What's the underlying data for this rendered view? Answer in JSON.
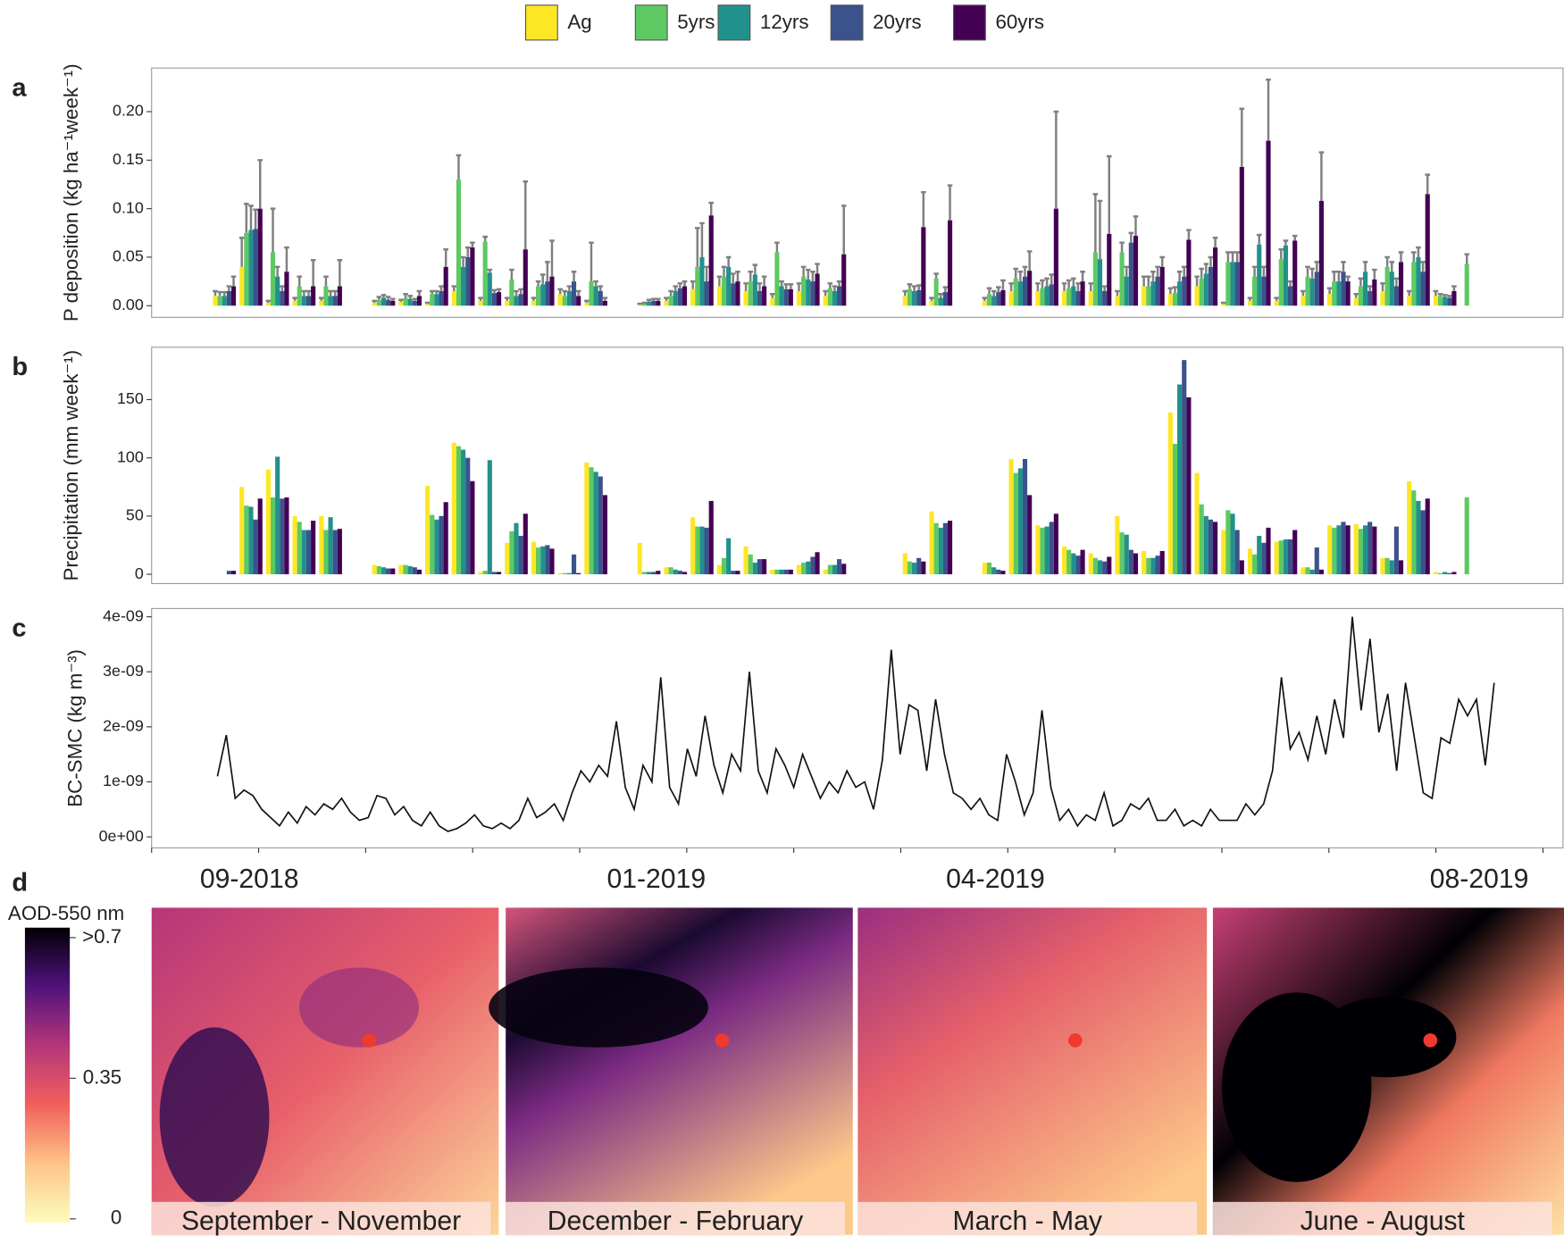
{
  "legend_series": "chart_data.0.series",
  "chart_data": [
    {
      "type": "bar",
      "panel_label": "a",
      "y_label": "P deposition (kg ha⁻¹week⁻¹)",
      "categories": [
        null,
        null,
        null,
        null,
        null,
        null,
        null,
        null,
        null,
        null,
        null,
        null,
        null,
        null,
        null,
        null,
        null,
        null,
        null,
        null,
        null,
        null,
        null,
        null,
        null,
        null,
        null,
        null,
        null,
        null,
        null,
        null,
        null,
        null,
        null,
        null,
        null,
        null,
        null,
        null,
        null,
        null,
        null,
        null,
        null,
        null,
        null,
        null
      ],
      "ylim": [
        -0.012,
        0.245
      ],
      "yticks": [
        {
          "value": 0,
          "label": "0.00"
        },
        {
          "value": 0.05,
          "label": "0.05"
        },
        {
          "value": 0.1,
          "label": "0.10"
        },
        {
          "value": 0.15,
          "label": "0.15"
        },
        {
          "value": 0.2,
          "label": "0.20"
        }
      ],
      "error_color": "#808080",
      "series": [
        {
          "name": "Ag",
          "color": "#fde725",
          "values": [
            0.01,
            0.04,
            0.003,
            0.005,
            0.005,
            null,
            0.003,
            0.004,
            0.002,
            0.015,
            0.005,
            0.005,
            0.005,
            0.012,
            0.003,
            null,
            0.001,
            0.005,
            0.017,
            0.02,
            0.015,
            0.008,
            0.015,
            0.01,
            null,
            null,
            0.01,
            0.005,
            null,
            0.005,
            0.015,
            0.015,
            0.015,
            0.015,
            0.01,
            0.02,
            0.012,
            0.02,
            0.002,
            0.005,
            0.005,
            0.01,
            0.012,
            0.008,
            0.015,
            0.01,
            0.01,
            null
          ],
          "errors": [
            0.005,
            0.03,
            0.002,
            0.003,
            0.003,
            null,
            0.002,
            0.002,
            0.001,
            0.005,
            0.003,
            0.003,
            0.003,
            0.005,
            0.002,
            null,
            0.001,
            0.003,
            0.008,
            0.01,
            0.008,
            0.004,
            0.008,
            0.005,
            null,
            null,
            0.005,
            0.003,
            null,
            0.003,
            0.008,
            0.008,
            0.008,
            0.008,
            0.005,
            0.01,
            0.006,
            0.01,
            0.001,
            0.003,
            0.003,
            0.005,
            0.006,
            0.004,
            0.008,
            0.005,
            0.005,
            null
          ]
        },
        {
          "name": "5yrs",
          "color": "#5ec962",
          "values": [
            0.01,
            0.075,
            0.055,
            0.02,
            0.02,
            null,
            0.006,
            0.008,
            0.012,
            0.13,
            0.066,
            0.027,
            0.02,
            0.01,
            0.025,
            null,
            0.002,
            0.01,
            0.04,
            0.03,
            0.025,
            0.055,
            0.03,
            0.018,
            null,
            null,
            0.017,
            0.028,
            null,
            0.012,
            0.028,
            0.018,
            0.018,
            0.055,
            0.055,
            0.02,
            0.013,
            0.028,
            0.045,
            0.03,
            0.048,
            0.03,
            0.025,
            0.02,
            0.04,
            0.045,
            0.01,
            0.043
          ],
          "errors": [
            0.004,
            0.03,
            0.045,
            0.01,
            0.01,
            null,
            0.003,
            0.004,
            0.003,
            0.025,
            0.005,
            0.01,
            0.005,
            0.005,
            0.04,
            null,
            0.001,
            0.005,
            0.04,
            0.01,
            0.01,
            0.01,
            0.01,
            0.005,
            null,
            null,
            0.005,
            0.005,
            null,
            0.006,
            0.01,
            0.008,
            0.008,
            0.06,
            0.01,
            0.01,
            0.006,
            0.01,
            0.01,
            0.01,
            0.01,
            0.01,
            0.01,
            0.008,
            0.01,
            0.01,
            0.002,
            0.01
          ]
        },
        {
          "name": "12yrs",
          "color": "#21918c",
          "values": [
            0.01,
            0.078,
            0.03,
            0.01,
            0.01,
            null,
            0.008,
            0.007,
            0.012,
            0.04,
            0.034,
            0.01,
            0.022,
            0.015,
            0.02,
            null,
            0.004,
            0.015,
            0.05,
            0.04,
            0.032,
            0.02,
            0.027,
            0.015,
            null,
            null,
            0.015,
            0.008,
            null,
            0.01,
            0.025,
            0.02,
            0.02,
            0.048,
            0.03,
            0.025,
            0.025,
            0.033,
            0.045,
            0.063,
            0.062,
            0.028,
            0.025,
            0.035,
            0.035,
            0.05,
            0.009,
            null
          ],
          "errors": [
            0.004,
            0.025,
            0.01,
            0.005,
            0.005,
            null,
            0.003,
            0.003,
            0.003,
            0.01,
            0.003,
            0.005,
            0.01,
            0.005,
            0.005,
            null,
            0.002,
            0.005,
            0.035,
            0.01,
            0.01,
            0.005,
            0.01,
            0.005,
            null,
            null,
            0.005,
            0.004,
            null,
            0.005,
            0.01,
            0.008,
            0.008,
            0.06,
            0.01,
            0.01,
            0.01,
            0.01,
            0.01,
            0.01,
            0.005,
            0.01,
            0.01,
            0.01,
            0.01,
            0.01,
            0.002,
            null
          ]
        },
        {
          "name": "20yrs",
          "color": "#3b528b",
          "values": [
            0.015,
            0.079,
            0.015,
            0.01,
            0.01,
            null,
            0.006,
            0.005,
            0.015,
            0.05,
            0.013,
            0.012,
            0.025,
            0.025,
            0.015,
            null,
            0.005,
            0.018,
            0.025,
            0.023,
            0.015,
            0.017,
            0.025,
            0.02,
            null,
            null,
            0.016,
            0.014,
            null,
            0.014,
            0.03,
            0.022,
            0.015,
            0.015,
            0.065,
            0.03,
            0.03,
            0.04,
            0.045,
            0.03,
            0.02,
            0.035,
            0.035,
            0.015,
            0.02,
            0.035,
            0.008,
            null
          ],
          "errors": [
            0.005,
            0.02,
            0.005,
            0.005,
            0.005,
            null,
            0.003,
            0.002,
            0.005,
            0.01,
            0.003,
            0.005,
            0.02,
            0.01,
            0.005,
            null,
            0.002,
            0.005,
            0.015,
            0.01,
            0.008,
            0.005,
            0.01,
            0.005,
            null,
            null,
            0.005,
            0.005,
            null,
            0.005,
            0.01,
            0.01,
            0.008,
            0.005,
            0.01,
            0.01,
            0.01,
            0.01,
            0.01,
            0.01,
            0.005,
            0.01,
            0.01,
            0.005,
            0.008,
            0.01,
            0.002,
            null
          ]
        },
        {
          "name": "60yrs",
          "color": "#440154",
          "values": [
            0.02,
            0.1,
            0.035,
            0.02,
            0.02,
            null,
            0.005,
            0.01,
            0.04,
            0.06,
            0.014,
            0.058,
            0.03,
            0.01,
            0.005,
            null,
            0.005,
            0.02,
            0.093,
            0.025,
            0.02,
            0.017,
            0.033,
            0.053,
            null,
            null,
            0.081,
            0.088,
            null,
            0.016,
            0.036,
            0.1,
            0.025,
            0.074,
            0.072,
            0.04,
            0.068,
            0.06,
            0.143,
            0.17,
            0.067,
            0.108,
            0.025,
            0.027,
            0.045,
            0.115,
            0.015,
            null
          ],
          "errors": [
            0.01,
            0.05,
            0.025,
            0.027,
            0.027,
            null,
            0.002,
            0.005,
            0.018,
            0.005,
            0.003,
            0.07,
            0.037,
            0.005,
            0.003,
            null,
            0.002,
            0.005,
            0.013,
            0.01,
            0.01,
            0.005,
            0.01,
            0.05,
            null,
            null,
            0.036,
            0.036,
            null,
            0.01,
            0.02,
            0.1,
            0.01,
            0.08,
            0.02,
            0.01,
            0.01,
            0.01,
            0.06,
            0.063,
            0.005,
            0.05,
            0.005,
            0.01,
            0.01,
            0.02,
            0.005,
            null
          ]
        }
      ]
    },
    {
      "type": "bar",
      "panel_label": "b",
      "y_label": "Precipitation (mm week⁻¹)",
      "categories": [
        null,
        null,
        null,
        null,
        null,
        null,
        null,
        null,
        null,
        null,
        null,
        null,
        null,
        null,
        null,
        null,
        null,
        null,
        null,
        null,
        null,
        null,
        null,
        null,
        null,
        null,
        null,
        null,
        null,
        null,
        null,
        null,
        null,
        null,
        null,
        null,
        null,
        null,
        null,
        null,
        null,
        null,
        null,
        null,
        null,
        null,
        null,
        null
      ],
      "ylim": [
        -8,
        195
      ],
      "yticks": [
        0,
        50,
        100,
        150
      ],
      "series": [
        {
          "name": "Ag",
          "color": "#fde725",
          "values": [
            null,
            75,
            90,
            50,
            50,
            null,
            8,
            8,
            76,
            113,
            2,
            27,
            28,
            1,
            96,
            null,
            27,
            6,
            49,
            8,
            24,
            4,
            8,
            4,
            null,
            null,
            18,
            54,
            null,
            10,
            99,
            42,
            24,
            18,
            50,
            20,
            139,
            87,
            38,
            22,
            28,
            6,
            42,
            43,
            14,
            80,
            2,
            null
          ]
        },
        {
          "name": "5yrs",
          "color": "#5ec962",
          "values": [
            null,
            59,
            66,
            45,
            38,
            null,
            7,
            8,
            51,
            110,
            3,
            37,
            23,
            1,
            92,
            null,
            2,
            6,
            41,
            14,
            17,
            4,
            10,
            8,
            null,
            null,
            11,
            44,
            null,
            10,
            87,
            40,
            21,
            14,
            36,
            14,
            112,
            60,
            55,
            17,
            29,
            6,
            40,
            39,
            14,
            72,
            1,
            66
          ]
        },
        {
          "name": "12yrs",
          "color": "#21918c",
          "values": [
            null,
            58,
            101,
            38,
            49,
            null,
            6,
            7,
            47,
            107,
            98,
            44,
            24,
            1,
            88,
            null,
            2,
            4,
            41,
            31,
            10,
            4,
            11,
            8,
            null,
            null,
            10,
            40,
            null,
            6,
            91,
            41,
            18,
            12,
            34,
            14,
            163,
            50,
            52,
            33,
            30,
            4,
            42,
            42,
            12,
            63,
            2,
            null
          ]
        },
        {
          "name": "20yrs",
          "color": "#3b528b",
          "values": [
            3,
            47,
            65,
            38,
            38,
            null,
            5,
            6,
            50,
            100,
            2,
            33,
            25,
            17,
            84,
            null,
            2,
            3,
            40,
            3,
            13,
            4,
            15,
            13,
            null,
            null,
            14,
            44,
            null,
            4,
            99,
            45,
            16,
            11,
            21,
            16,
            184,
            47,
            38,
            27,
            30,
            23,
            45,
            45,
            41,
            55,
            1,
            null
          ]
        },
        {
          "name": "60yrs",
          "color": "#440154",
          "values": [
            3,
            65,
            66,
            46,
            39,
            null,
            5,
            4,
            62,
            80,
            2,
            52,
            22,
            1,
            68,
            null,
            3,
            2,
            63,
            3,
            13,
            4,
            19,
            9,
            null,
            null,
            11,
            46,
            null,
            3,
            68,
            52,
            21,
            15,
            18,
            20,
            152,
            45,
            12,
            40,
            38,
            4,
            42,
            41,
            12,
            65,
            2,
            null
          ]
        }
      ]
    },
    {
      "type": "line",
      "panel_label": "c",
      "y_label": "BC-SMC (kg m⁻³)",
      "color": "#111111",
      "ylim": [
        -2e-10,
        4.15e-09
      ],
      "yticks": [
        {
          "value": 0,
          "label": "0e+00"
        },
        {
          "value": 1e-09,
          "label": "1e-09"
        },
        {
          "value": 2e-09,
          "label": "2e-09"
        },
        {
          "value": 3e-09,
          "label": "3e-09"
        },
        {
          "value": 4e-09,
          "label": "4e-09"
        }
      ],
      "values": [
        1.1e-09,
        1.85e-09,
        7e-10,
        8.5e-10,
        7.5e-10,
        5e-10,
        3.5e-10,
        2e-10,
        4.5e-10,
        2.5e-10,
        5.5e-10,
        4e-10,
        6e-10,
        5e-10,
        7e-10,
        4.5e-10,
        3e-10,
        3.5e-10,
        7.5e-10,
        7e-10,
        4e-10,
        5.5e-10,
        3e-10,
        2e-10,
        4.5e-10,
        2e-10,
        1e-10,
        1.5e-10,
        2.5e-10,
        4e-10,
        2e-10,
        1.5e-10,
        2.5e-10,
        1.5e-10,
        3e-10,
        7e-10,
        3.5e-10,
        4.5e-10,
        6e-10,
        3e-10,
        8e-10,
        1.2e-09,
        1e-09,
        1.3e-09,
        1.1e-09,
        2.1e-09,
        9e-10,
        5e-10,
        1.3e-09,
        1e-09,
        2.9e-09,
        9e-10,
        6e-10,
        1.6e-09,
        1.1e-09,
        2.2e-09,
        1.3e-09,
        8e-10,
        1.5e-09,
        1.2e-09,
        3e-09,
        1.2e-09,
        8e-10,
        1.6e-09,
        1.3e-09,
        9e-10,
        1.5e-09,
        1.1e-09,
        7e-10,
        1e-09,
        8e-10,
        1.2e-09,
        9e-10,
        1e-09,
        5e-10,
        1.4e-09,
        3.4e-09,
        1.5e-09,
        2.4e-09,
        2.3e-09,
        1.2e-09,
        2.5e-09,
        1.5e-09,
        8e-10,
        7e-10,
        5e-10,
        7e-10,
        4e-10,
        3e-10,
        1.5e-09,
        1e-09,
        4e-10,
        8e-10,
        2.3e-09,
        9e-10,
        3e-10,
        5e-10,
        2e-10,
        4e-10,
        3e-10,
        8e-10,
        2e-10,
        3e-10,
        6e-10,
        5e-10,
        7e-10,
        3e-10,
        3e-10,
        5e-10,
        2e-10,
        3e-10,
        2e-10,
        5e-10,
        3e-10,
        3e-10,
        3e-10,
        6e-10,
        4e-10,
        6e-10,
        1.2e-09,
        2.9e-09,
        1.6e-09,
        1.9e-09,
        1.4e-09,
        2.2e-09,
        1.5e-09,
        2.5e-09,
        1.8e-09,
        4e-09,
        2.3e-09,
        3.6e-09,
        1.9e-09,
        2.6e-09,
        1.2e-09,
        2.8e-09,
        1.8e-09,
        8e-10,
        7e-10,
        1.8e-09,
        1.7e-09,
        2.5e-09,
        2.2e-09,
        2.5e-09,
        1.3e-09,
        2.8e-09
      ]
    }
  ],
  "map_panel": {
    "panel_label": "d",
    "period_labels": [
      "09-2018",
      "01-2019",
      "04-2019",
      "08-2019"
    ],
    "colorbar": {
      "title": "AOD-550 nm",
      "lim": [
        0,
        0.7
      ],
      "ticks": [
        {
          "value": 0.7,
          "label": ">0.7"
        },
        0.35,
        0
      ]
    },
    "maps": [
      {
        "caption": "September - November"
      },
      {
        "caption": "December - February"
      },
      {
        "caption": "March - May"
      },
      {
        "caption": "June - August"
      }
    ]
  }
}
